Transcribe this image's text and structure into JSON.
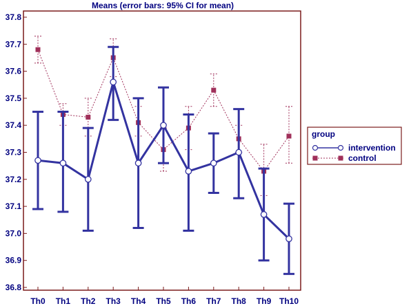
{
  "chart_data": {
    "type": "line",
    "title": "Means  (error bars: 95% CI for mean)",
    "xlabel": "",
    "ylabel": "",
    "categories": [
      "Th0",
      "Th1",
      "Th2",
      "Th3",
      "Th4",
      "Th5",
      "Th6",
      "Th7",
      "Th8",
      "Th9",
      "Th10"
    ],
    "ylim": [
      36.8,
      37.8
    ],
    "yticks": [
      "37.8",
      "37.7",
      "37.6",
      "37.5",
      "37.4",
      "37.3",
      "37.2",
      "37.1",
      "37.0",
      "36.9",
      "36.8"
    ],
    "grid": false,
    "legend": {
      "title": "group",
      "placement": "right"
    },
    "series": [
      {
        "name": "intervention",
        "color": "#3333a0",
        "marker": "circle",
        "line": "solid",
        "values": [
          37.27,
          37.26,
          37.2,
          37.56,
          37.26,
          37.4,
          37.23,
          37.26,
          37.3,
          37.07,
          36.98
        ],
        "ci_low": [
          37.09,
          37.08,
          37.01,
          37.42,
          37.02,
          37.26,
          37.01,
          37.15,
          37.13,
          36.9,
          36.85
        ],
        "ci_high": [
          37.45,
          37.45,
          37.39,
          37.69,
          37.5,
          37.54,
          37.44,
          37.37,
          37.46,
          37.24,
          37.11
        ]
      },
      {
        "name": "control",
        "color": "#a0305a",
        "marker": "square",
        "line": "dotted",
        "values": [
          37.68,
          37.44,
          37.43,
          37.65,
          37.41,
          37.31,
          37.39,
          37.53,
          37.35,
          37.23,
          37.36
        ],
        "ci_low": [
          37.63,
          37.4,
          37.36,
          37.58,
          37.36,
          37.23,
          37.31,
          37.47,
          37.3,
          37.14,
          37.26
        ],
        "ci_high": [
          37.73,
          37.48,
          37.5,
          37.72,
          37.47,
          37.39,
          37.47,
          37.59,
          37.4,
          37.33,
          37.47
        ]
      }
    ]
  }
}
